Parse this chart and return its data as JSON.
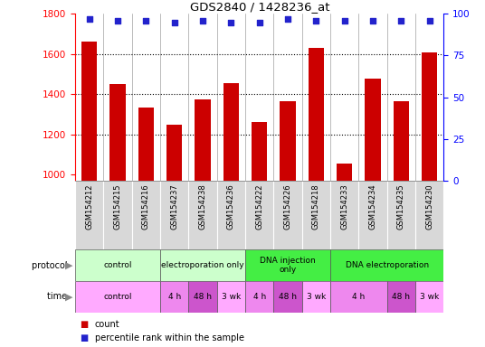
{
  "title": "GDS2840 / 1428236_at",
  "samples": [
    "GSM154212",
    "GSM154215",
    "GSM154216",
    "GSM154237",
    "GSM154238",
    "GSM154236",
    "GSM154222",
    "GSM154226",
    "GSM154218",
    "GSM154233",
    "GSM154234",
    "GSM154235",
    "GSM154230"
  ],
  "counts": [
    1660,
    1450,
    1335,
    1248,
    1375,
    1455,
    1263,
    1365,
    1630,
    1055,
    1478,
    1365,
    1610
  ],
  "percentile_ranks": [
    97,
    96,
    96,
    95,
    96,
    95,
    95,
    97,
    96,
    96,
    96,
    96,
    96
  ],
  "ylim_left": [
    970,
    1800
  ],
  "ylim_right": [
    0,
    100
  ],
  "yticks_left": [
    1000,
    1200,
    1400,
    1600,
    1800
  ],
  "yticks_right": [
    0,
    25,
    50,
    75,
    100
  ],
  "bar_color": "#cc0000",
  "dot_color": "#2222cc",
  "grid_color": "#000000",
  "protocol_groups": [
    {
      "label": "control",
      "start": 0,
      "end": 3,
      "color": "#ccffcc"
    },
    {
      "label": "electroporation only",
      "start": 3,
      "end": 6,
      "color": "#ccffcc"
    },
    {
      "label": "DNA injection\nonly",
      "start": 6,
      "end": 9,
      "color": "#44ee44"
    },
    {
      "label": "DNA electroporation",
      "start": 9,
      "end": 13,
      "color": "#44ee44"
    }
  ],
  "time_groups": [
    {
      "label": "control",
      "start": 0,
      "end": 3,
      "color": "#ffaaff"
    },
    {
      "label": "4 h",
      "start": 3,
      "end": 4,
      "color": "#ee88ee"
    },
    {
      "label": "48 h",
      "start": 4,
      "end": 5,
      "color": "#cc55cc"
    },
    {
      "label": "3 wk",
      "start": 5,
      "end": 6,
      "color": "#ffaaff"
    },
    {
      "label": "4 h",
      "start": 6,
      "end": 7,
      "color": "#ee88ee"
    },
    {
      "label": "48 h",
      "start": 7,
      "end": 8,
      "color": "#cc55cc"
    },
    {
      "label": "3 wk",
      "start": 8,
      "end": 9,
      "color": "#ffaaff"
    },
    {
      "label": "4 h",
      "start": 9,
      "end": 11,
      "color": "#ee88ee"
    },
    {
      "label": "48 h",
      "start": 11,
      "end": 12,
      "color": "#cc55cc"
    },
    {
      "label": "3 wk",
      "start": 12,
      "end": 13,
      "color": "#ffaaff"
    }
  ],
  "legend_count_color": "#cc0000",
  "legend_dot_color": "#2222cc",
  "bg_color": "#ffffff",
  "sample_row_color": "#d8d8d8",
  "col_border_color": "#888888",
  "protocol_border_color": "#555555",
  "arrow_color": "#888888"
}
